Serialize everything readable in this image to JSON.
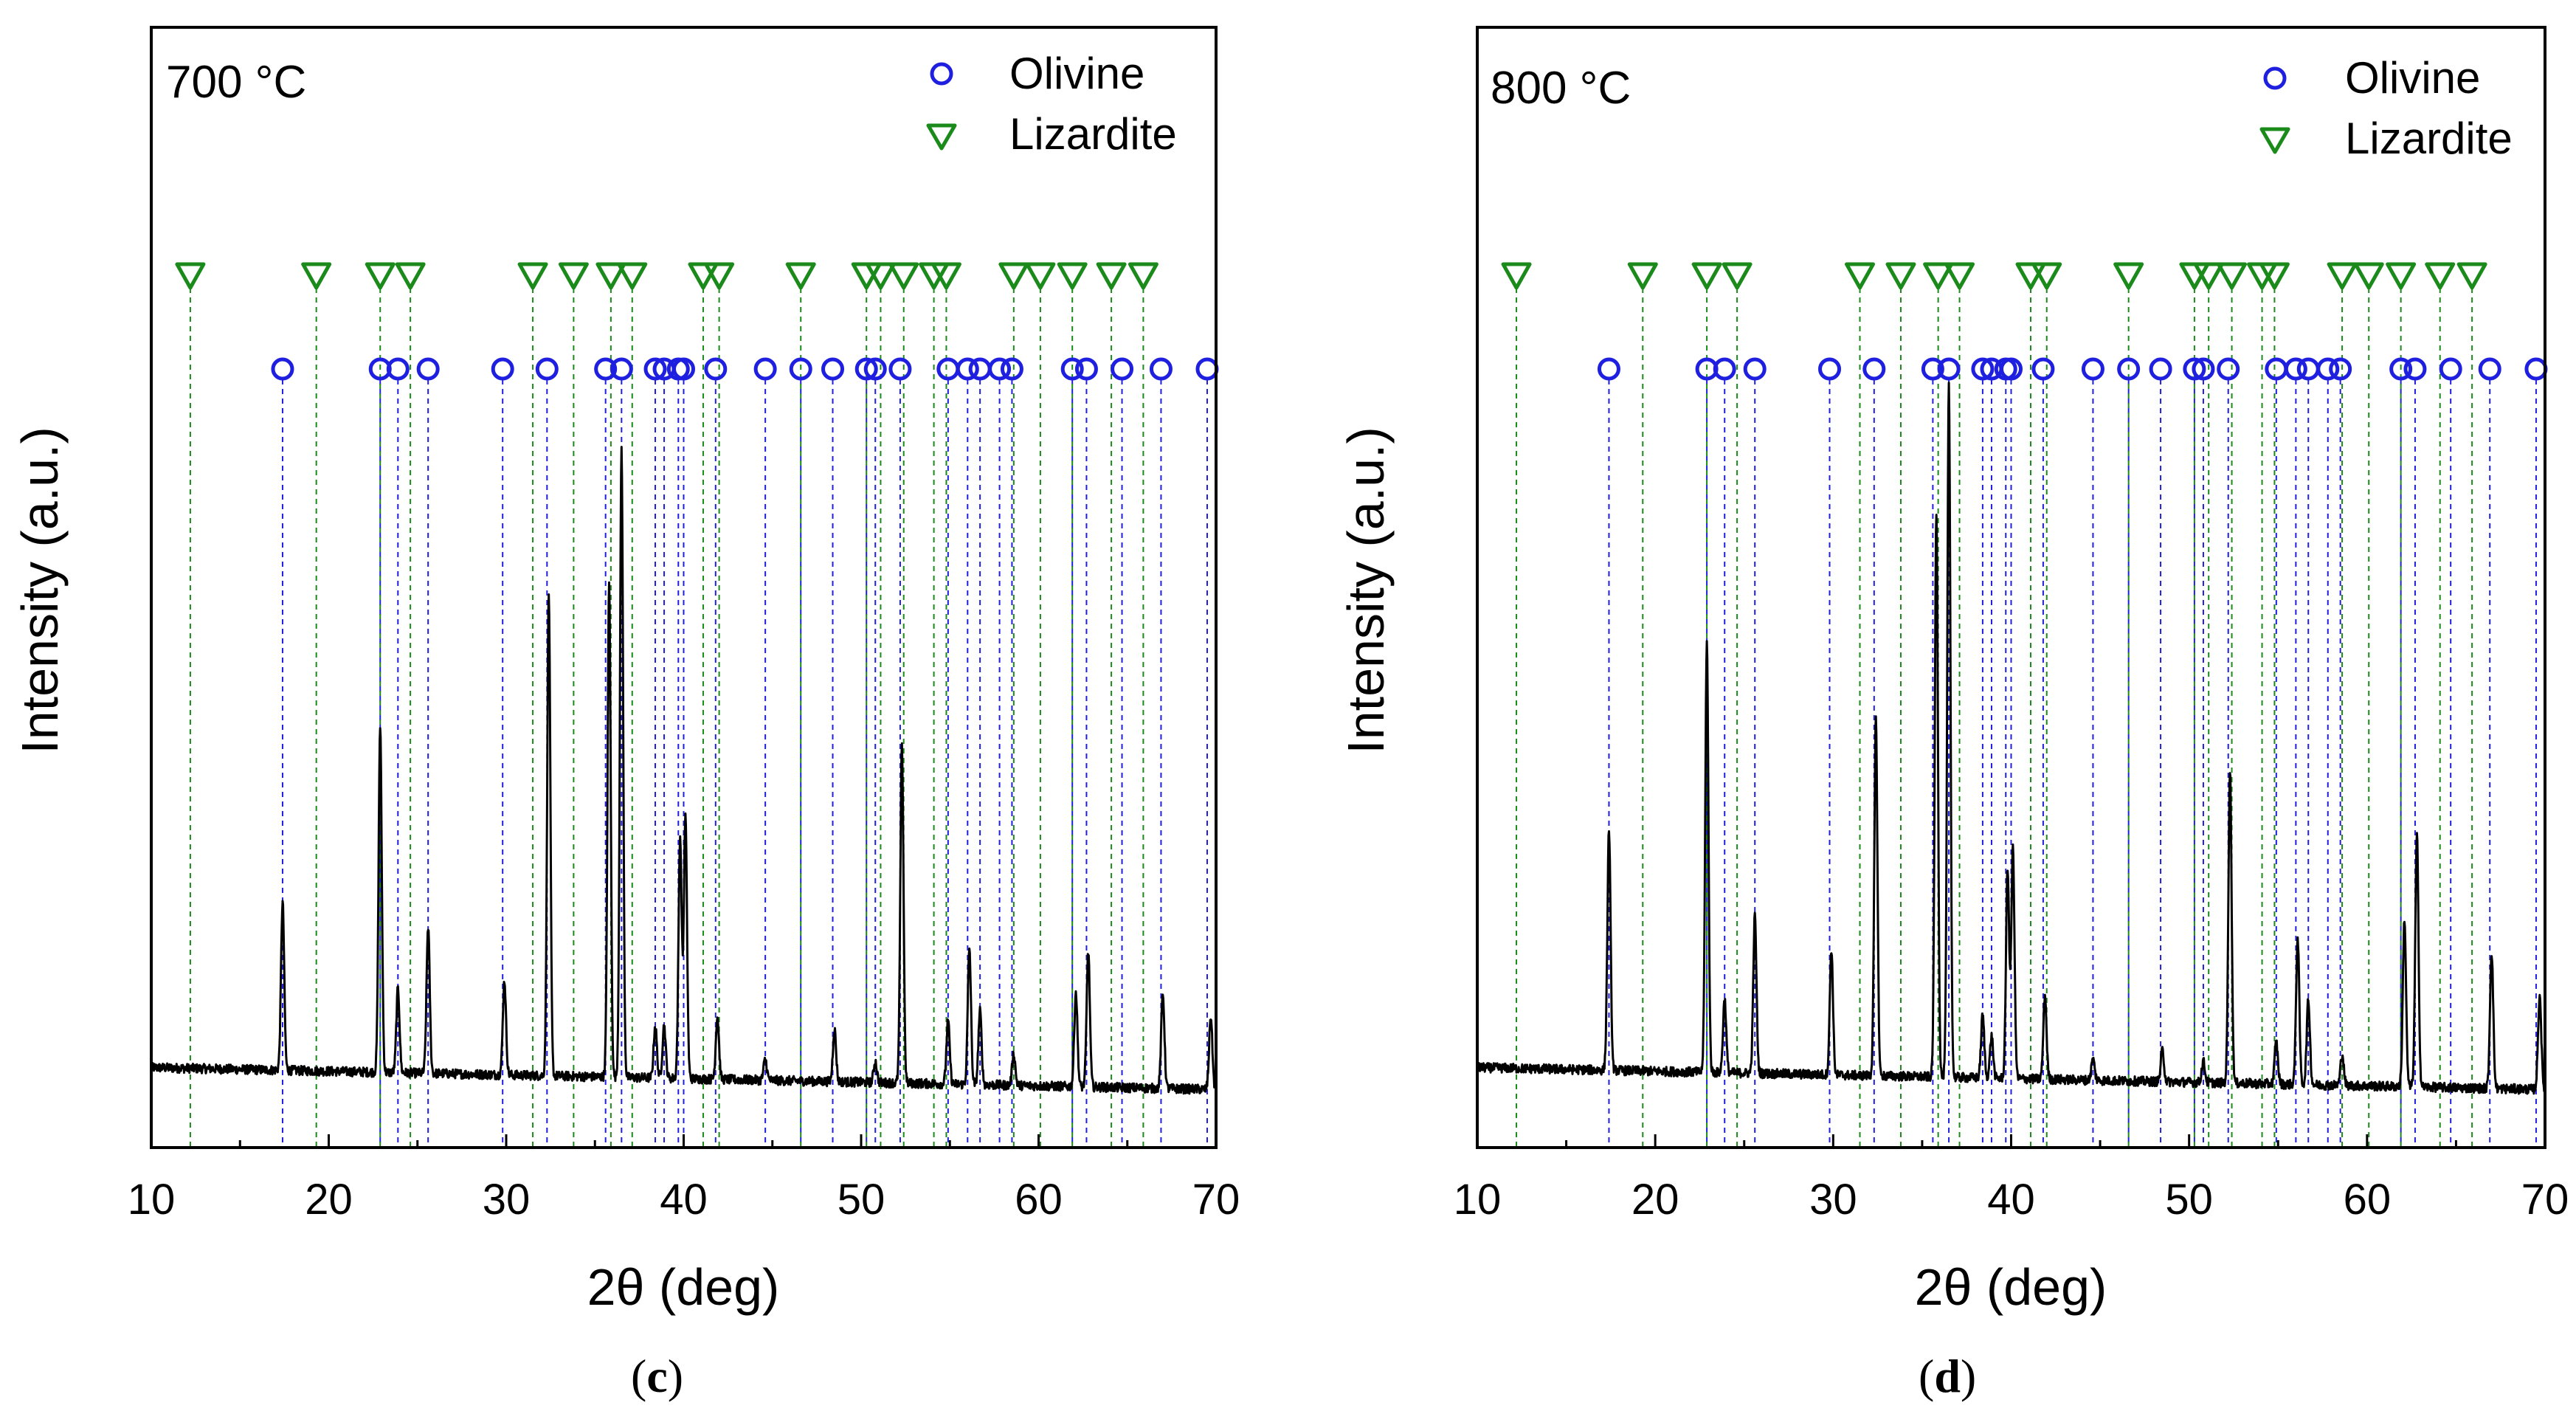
{
  "colors": {
    "frame": "#000000",
    "pattern": "#000000",
    "olivine": "#1f1fe0",
    "lizardite": "#1a8a1a"
  },
  "chart_data": [
    {
      "type": "line",
      "panel_label": "c",
      "annotation": "700 °C",
      "xlabel": "2θ (deg)",
      "ylabel": "Intensity (a.u.)",
      "xlim": [
        10,
        70
      ],
      "ylim": [
        0,
        100
      ],
      "xticks": [
        "10",
        "20",
        "30",
        "40",
        "50",
        "60",
        "70"
      ],
      "legend": [
        {
          "name": "Olivine",
          "marker": "circle",
          "color": "#1f1fe0"
        },
        {
          "name": "Lizardite",
          "marker": "triangle-down",
          "color": "#1a8a1a"
        }
      ],
      "olivine_positions": [
        17.4,
        22.9,
        23.9,
        25.6,
        29.8,
        32.3,
        35.6,
        36.5,
        38.4,
        38.9,
        39.7,
        40.0,
        41.8,
        44.6,
        46.6,
        48.4,
        50.3,
        50.8,
        52.2,
        54.9,
        56.0,
        56.7,
        57.8,
        58.5,
        61.9,
        62.7,
        64.7,
        66.9,
        69.5
      ],
      "lizardite_positions": [
        12.2,
        19.3,
        22.9,
        24.6,
        31.5,
        33.8,
        35.9,
        37.1,
        41.1,
        42.0,
        46.6,
        50.3,
        51.1,
        52.4,
        54.1,
        54.8,
        58.6,
        60.1,
        61.9,
        64.1,
        65.9
      ],
      "peaks": [
        {
          "x": 17.4,
          "h": 16
        },
        {
          "x": 22.9,
          "h": 33
        },
        {
          "x": 23.9,
          "h": 8
        },
        {
          "x": 25.6,
          "h": 14
        },
        {
          "x": 29.9,
          "h": 9
        },
        {
          "x": 32.4,
          "h": 46
        },
        {
          "x": 35.8,
          "h": 47
        },
        {
          "x": 36.5,
          "h": 60
        },
        {
          "x": 38.4,
          "h": 5
        },
        {
          "x": 38.9,
          "h": 5
        },
        {
          "x": 39.8,
          "h": 23
        },
        {
          "x": 40.1,
          "h": 25
        },
        {
          "x": 41.9,
          "h": 6
        },
        {
          "x": 44.6,
          "h": 2
        },
        {
          "x": 48.5,
          "h": 5
        },
        {
          "x": 50.8,
          "h": 2
        },
        {
          "x": 52.3,
          "h": 32
        },
        {
          "x": 54.9,
          "h": 6
        },
        {
          "x": 56.1,
          "h": 13
        },
        {
          "x": 56.7,
          "h": 7
        },
        {
          "x": 58.6,
          "h": 3
        },
        {
          "x": 62.1,
          "h": 9
        },
        {
          "x": 62.8,
          "h": 13
        },
        {
          "x": 67.0,
          "h": 9
        },
        {
          "x": 69.7,
          "h": 7
        }
      ]
    },
    {
      "type": "line",
      "panel_label": "d",
      "annotation": "800 °C",
      "xlabel": "2θ (deg)",
      "ylabel": "Intensity (a.u.)",
      "xlim": [
        10,
        70
      ],
      "ylim": [
        0,
        100
      ],
      "xticks": [
        "10",
        "20",
        "30",
        "40",
        "50",
        "60",
        "70"
      ],
      "legend": [
        {
          "name": "Olivine",
          "marker": "circle",
          "color": "#1f1fe0"
        },
        {
          "name": "Lizardite",
          "marker": "triangle-down",
          "color": "#1a8a1a"
        }
      ],
      "olivine_positions": [
        17.4,
        22.9,
        23.9,
        25.6,
        29.8,
        32.3,
        35.6,
        36.5,
        38.4,
        38.9,
        39.7,
        40.0,
        41.8,
        44.6,
        46.6,
        48.4,
        50.3,
        50.8,
        52.2,
        54.9,
        56.0,
        56.7,
        57.8,
        58.5,
        61.9,
        62.7,
        64.7,
        66.9,
        69.5
      ],
      "lizardite_positions": [
        12.2,
        19.3,
        22.9,
        24.6,
        31.5,
        33.8,
        35.9,
        37.1,
        41.1,
        42.0,
        46.6,
        50.3,
        51.1,
        52.4,
        54.1,
        54.8,
        58.6,
        60.1,
        61.9,
        64.1,
        65.9
      ],
      "peaks": [
        {
          "x": 17.4,
          "h": 23
        },
        {
          "x": 22.9,
          "h": 41
        },
        {
          "x": 23.9,
          "h": 7
        },
        {
          "x": 25.6,
          "h": 15
        },
        {
          "x": 29.9,
          "h": 12
        },
        {
          "x": 32.4,
          "h": 34
        },
        {
          "x": 35.8,
          "h": 54
        },
        {
          "x": 36.5,
          "h": 66
        },
        {
          "x": 38.4,
          "h": 6
        },
        {
          "x": 38.9,
          "h": 4
        },
        {
          "x": 39.8,
          "h": 20
        },
        {
          "x": 40.1,
          "h": 22
        },
        {
          "x": 41.9,
          "h": 8
        },
        {
          "x": 44.6,
          "h": 2
        },
        {
          "x": 48.5,
          "h": 3
        },
        {
          "x": 50.8,
          "h": 2
        },
        {
          "x": 52.3,
          "h": 30
        },
        {
          "x": 54.9,
          "h": 4
        },
        {
          "x": 56.1,
          "h": 14
        },
        {
          "x": 56.7,
          "h": 8
        },
        {
          "x": 58.6,
          "h": 3
        },
        {
          "x": 62.1,
          "h": 16
        },
        {
          "x": 62.8,
          "h": 24
        },
        {
          "x": 67.0,
          "h": 13
        },
        {
          "x": 69.7,
          "h": 9
        }
      ]
    }
  ]
}
